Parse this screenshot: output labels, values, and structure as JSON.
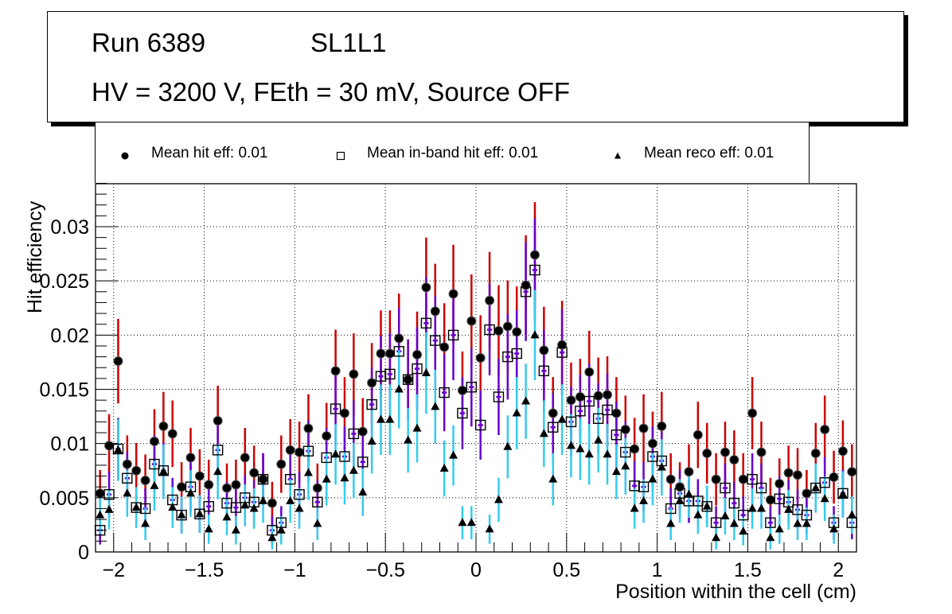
{
  "header": {
    "run_label": "Run 6389",
    "layer_label": "SL1L1",
    "conditions": "HV = 3200 V, FEth = 30 mV, Source OFF"
  },
  "legend": {
    "position": "top",
    "entries": [
      {
        "marker": "filled-circle",
        "label": "Mean hit  eff: 0.01"
      },
      {
        "marker": "open-square",
        "label": "Mean in-band hit eff: 0.01"
      },
      {
        "marker": "filled-triangle",
        "label": "Mean reco eff: 0.01"
      }
    ]
  },
  "chart_data": {
    "type": "scatter",
    "title": "Run 6389 SL1L1 — HV = 3200 V, FEth = 30 mV, Source OFF",
    "xlabel": "Position within the cell (cm)",
    "ylabel": "Hit efficiency",
    "xlim": [
      -2.1,
      2.1
    ],
    "ylim": [
      0,
      0.034
    ],
    "grid": true,
    "x_ticks": [
      -2,
      -1.5,
      -1,
      -0.5,
      0,
      0.5,
      1,
      1.5,
      2
    ],
    "x_tick_labels": [
      "−2",
      "−1.5",
      "−1",
      "−0.5",
      "0",
      "0.5",
      "1",
      "1.5",
      "2"
    ],
    "y_ticks": [
      0,
      0.005,
      0.01,
      0.015,
      0.02,
      0.025,
      0.03
    ],
    "y_tick_labels": [
      "0",
      "0.005",
      "0.01",
      "0.015",
      "0.02",
      "0.025",
      "0.03"
    ],
    "bin_width": 0.05,
    "x": [
      -2.075,
      -2.025,
      -1.975,
      -1.925,
      -1.875,
      -1.825,
      -1.775,
      -1.725,
      -1.675,
      -1.625,
      -1.575,
      -1.525,
      -1.475,
      -1.425,
      -1.375,
      -1.325,
      -1.275,
      -1.225,
      -1.175,
      -1.125,
      -1.075,
      -1.025,
      -0.975,
      -0.925,
      -0.875,
      -0.825,
      -0.775,
      -0.725,
      -0.675,
      -0.625,
      -0.575,
      -0.525,
      -0.475,
      -0.425,
      -0.375,
      -0.325,
      -0.275,
      -0.225,
      -0.175,
      -0.125,
      -0.075,
      -0.025,
      0.025,
      0.075,
      0.125,
      0.175,
      0.225,
      0.275,
      0.325,
      0.375,
      0.425,
      0.475,
      0.525,
      0.575,
      0.625,
      0.675,
      0.725,
      0.775,
      0.825,
      0.875,
      0.925,
      0.975,
      1.025,
      1.075,
      1.125,
      1.175,
      1.225,
      1.275,
      1.325,
      1.375,
      1.425,
      1.475,
      1.525,
      1.575,
      1.625,
      1.675,
      1.725,
      1.775,
      1.825,
      1.875,
      1.925,
      1.975,
      2.025,
      2.075
    ],
    "error_model": {
      "description": "symmetric statistical error bars, approx k*sqrt(value)",
      "k": 0.0294
    },
    "series": [
      {
        "name": "Mean hit  eff: 0.01",
        "marker": "filled-circle",
        "marker_color": "#000000",
        "error_color": "#cc0000",
        "values": [
          0.0054,
          0.0098,
          0.0176,
          0.0081,
          0.0075,
          0.0066,
          0.0102,
          0.0116,
          0.0109,
          0.006,
          0.0087,
          0.007,
          0.0062,
          0.0121,
          0.0059,
          0.0062,
          0.0087,
          0.0073,
          0.0067,
          0.0045,
          0.0081,
          0.0094,
          0.0092,
          0.0114,
          0.0059,
          0.0107,
          0.0167,
          0.0128,
          0.0164,
          0.0111,
          0.0156,
          0.0183,
          0.0183,
          0.0197,
          0.0159,
          0.0182,
          0.0244,
          0.0222,
          0.0189,
          0.0238,
          0.0149,
          0.0213,
          0.0179,
          0.0232,
          0.0204,
          0.0208,
          0.0203,
          0.0246,
          0.0274,
          0.0186,
          0.0128,
          0.0191,
          0.014,
          0.0143,
          0.0166,
          0.0144,
          0.0145,
          0.0128,
          0.0113,
          0.0095,
          0.0114,
          0.01,
          0.0116,
          0.0067,
          0.006,
          0.0074,
          0.0108,
          0.0091,
          0.0067,
          0.0092,
          0.0085,
          0.0067,
          0.0128,
          0.0092,
          0.0048,
          0.0063,
          0.0073,
          0.0071,
          0.0054,
          0.0091,
          0.0113,
          0.0069,
          0.0093,
          0.0074
        ]
      },
      {
        "name": "Mean in-band hit eff: 0.01",
        "marker": "open-square",
        "marker_color": "#000000",
        "error_color": "#6600cc",
        "values": [
          0.002,
          0.0053,
          0.0095,
          0.0068,
          0.0041,
          0.004,
          0.0081,
          0.0075,
          0.0048,
          0.0034,
          0.006,
          0.0035,
          0.0042,
          0.0094,
          0.0045,
          0.0041,
          0.005,
          0.0046,
          0.0067,
          0.002,
          0.0027,
          0.0067,
          0.0053,
          0.0093,
          0.0046,
          0.0087,
          0.0132,
          0.0088,
          0.0109,
          0.0083,
          0.0136,
          0.0162,
          0.0164,
          0.0185,
          0.0159,
          0.0169,
          0.0211,
          0.0195,
          0.0147,
          0.02,
          0.0128,
          0.0152,
          0.0117,
          0.0205,
          0.0143,
          0.018,
          0.0183,
          0.024,
          0.026,
          0.0167,
          0.0115,
          0.0184,
          0.012,
          0.013,
          0.0139,
          0.0123,
          0.0131,
          0.0108,
          0.0092,
          0.0061,
          0.006,
          0.0088,
          0.0084,
          0.004,
          0.0054,
          0.0047,
          0.0047,
          0.0042,
          0.0027,
          0.0059,
          0.0045,
          0.0034,
          0.0067,
          0.0059,
          0.0027,
          0.0049,
          0.0046,
          0.0039,
          0.0034,
          0.0059,
          0.0064,
          0.0027,
          0.0054,
          0.0027
        ]
      },
      {
        "name": "Mean reco eff: 0.01",
        "marker": "filled-triangle",
        "marker_color": "#000000",
        "error_color": "#33ccee",
        "values": [
          0.0034,
          0.0039,
          0.0094,
          0.0054,
          0.0041,
          0.0026,
          0.0061,
          0.0074,
          0.0041,
          0.0034,
          0.0054,
          0.0035,
          0.0021,
          0.0074,
          0.0032,
          0.002,
          0.0043,
          0.004,
          0.0047,
          0.0013,
          0.002,
          0.0047,
          0.004,
          0.0073,
          0.0026,
          0.0067,
          0.009,
          0.0068,
          0.0075,
          0.0055,
          0.0102,
          0.0122,
          0.0122,
          0.015,
          0.0103,
          0.0114,
          0.0165,
          0.0134,
          0.0077,
          0.0089,
          0.0027,
          0.0027,
          null,
          0.0021,
          0.0048,
          0.0097,
          0.0128,
          0.0139,
          0.02,
          0.0109,
          0.0067,
          0.0122,
          0.0098,
          0.0095,
          0.009,
          0.0103,
          0.009,
          0.0074,
          0.0079,
          0.004,
          0.0047,
          0.0067,
          0.0078,
          0.0026,
          0.0047,
          0.0053,
          0.0034,
          0.0042,
          0.0013,
          0.0033,
          0.0026,
          0.0019,
          0.004,
          0.004,
          0.0013,
          0.0021,
          0.0039,
          0.0026,
          0.0026,
          0.0059,
          0.0049,
          0.0021,
          0.0053,
          0.0034
        ]
      }
    ]
  }
}
